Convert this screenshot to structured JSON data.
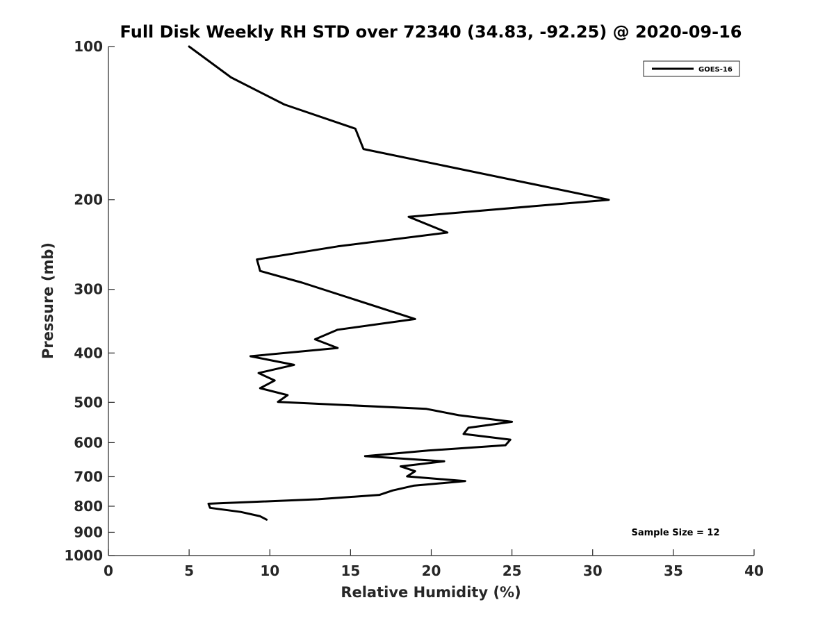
{
  "chart_data": {
    "type": "line",
    "title": "Full Disk Weekly RH STD over 72340 (34.83, -92.25) @ 2020-09-16",
    "xlabel": "Relative Humidity (%)",
    "ylabel": "Pressure (mb)",
    "xlim": [
      0,
      40
    ],
    "ylim": [
      1000,
      100
    ],
    "yscale": "log",
    "x_ticks": [
      "0",
      "5",
      "10",
      "15",
      "20",
      "25",
      "30",
      "35",
      "40"
    ],
    "y_ticks": [
      "100",
      "200",
      "300",
      "400",
      "500",
      "600",
      "700",
      "800",
      "900",
      "1000"
    ],
    "grid": false,
    "legend_position": "top-right",
    "annotation": "Sample Size = 12",
    "line_color": "#000000",
    "series": [
      {
        "name": "GOES-16",
        "x": [
          5.0,
          7.6,
          10.9,
          15.3,
          15.8,
          31.0,
          18.6,
          21.0,
          14.2,
          9.2,
          9.4,
          12.0,
          19.0,
          14.2,
          12.8,
          14.2,
          8.8,
          11.5,
          9.3,
          10.3,
          9.4,
          11.1,
          10.5,
          19.7,
          21.7,
          25.0,
          22.3,
          22.0,
          24.9,
          24.6,
          19.8,
          15.9,
          20.8,
          18.1,
          19.0,
          18.5,
          22.1,
          18.9,
          17.6,
          16.8,
          13.0,
          6.2,
          6.3,
          8.2,
          9.4,
          9.8
        ],
        "y": [
          100,
          115,
          130,
          145,
          159,
          200,
          216,
          232,
          247,
          262,
          276,
          291,
          343,
          360,
          376,
          391,
          406,
          422,
          438,
          453,
          469,
          484,
          499,
          515,
          530,
          546,
          561,
          577,
          592,
          607,
          622,
          638,
          653,
          668,
          683,
          699,
          714,
          729,
          745,
          760,
          775,
          791,
          806,
          821,
          837,
          850
        ]
      }
    ]
  }
}
